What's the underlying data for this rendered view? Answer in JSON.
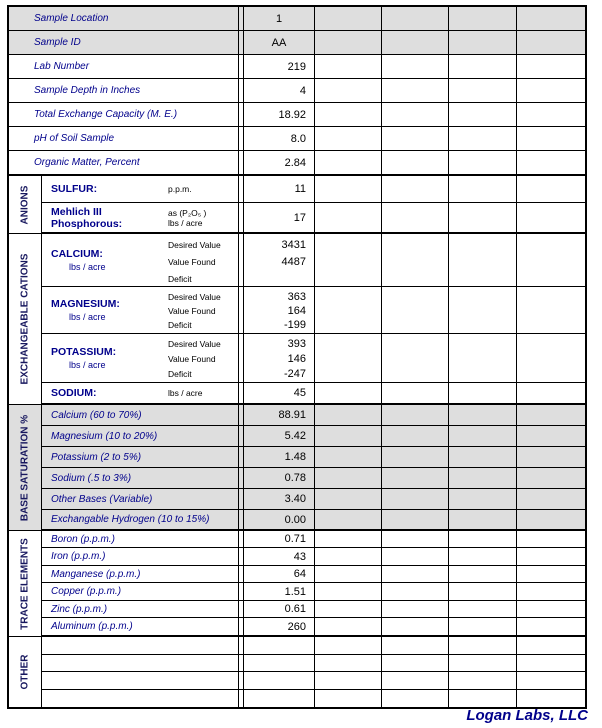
{
  "accent_color": "#00008b",
  "shade_color": "#dedede",
  "footer": {
    "brand": "Logan Labs, LLC"
  },
  "table": {
    "empty_data_columns": 4,
    "top_rows": [
      {
        "label": "Sample Location",
        "value": "1",
        "shaded": true,
        "center": true
      },
      {
        "label": "Sample ID",
        "value": "AA",
        "shaded": true,
        "center": true
      },
      {
        "label": "Lab Number",
        "value": "219"
      },
      {
        "label": "Sample Depth in Inches",
        "value": "4"
      },
      {
        "label": "Total Exchange Capacity (M. E.)",
        "value": "18.92"
      },
      {
        "label": "pH of Soil Sample",
        "value": "8.0"
      },
      {
        "label": "Organic Matter, Percent",
        "value": "2.84"
      }
    ],
    "anions": {
      "header": "ANIONS",
      "rows": [
        {
          "name": "SULFUR:",
          "unit_lines": [
            "p.p.m."
          ],
          "value": "11"
        },
        {
          "name": "Mehlich III Phosphorous:",
          "unit_lines": [
            "as (P₂O₅ )",
            "lbs / acre"
          ],
          "value": "17"
        }
      ]
    },
    "cations": {
      "header": "EXCHANGEABLE CATIONS",
      "rows": [
        {
          "name": "CALCIUM:",
          "unit_sub": "lbs / acre",
          "line_labels": [
            "Desired Value",
            "Value Found",
            "Deficit"
          ],
          "values": [
            "3431",
            "4487",
            ""
          ]
        },
        {
          "name": "MAGNESIUM:",
          "unit_sub": "lbs / acre",
          "line_labels": [
            "Desired Value",
            "Value Found",
            "Deficit"
          ],
          "values": [
            "363",
            "164",
            "-199"
          ]
        },
        {
          "name": "POTASSIUM:",
          "unit_sub": "lbs / acre",
          "line_labels": [
            "Desired Value",
            "Value Found",
            "Deficit"
          ],
          "values": [
            "393",
            "146",
            "-247"
          ]
        },
        {
          "name": "SODIUM:",
          "simple": true,
          "unit_lines": [
            "lbs / acre"
          ],
          "value": "45"
        }
      ]
    },
    "base_saturation": {
      "header": "BASE SATURATION %",
      "shaded": true,
      "rows": [
        {
          "label": "Calcium (60 to 70%)",
          "value": "88.91"
        },
        {
          "label": "Magnesium (10 to 20%)",
          "value": "5.42"
        },
        {
          "label": "Potassium (2 to 5%)",
          "value": "1.48"
        },
        {
          "label": "Sodium (.5 to 3%)",
          "value": "0.78"
        },
        {
          "label": "Other Bases (Variable)",
          "value": "3.40"
        },
        {
          "label": "Exchangable Hydrogen (10 to 15%)",
          "value": "0.00"
        }
      ]
    },
    "trace_elements": {
      "header": "TRACE ELEMENTS",
      "rows": [
        {
          "label": "Boron (p.p.m.)",
          "value": "0.71"
        },
        {
          "label": "Iron (p.p.m.)",
          "value": "43"
        },
        {
          "label": "Manganese (p.p.m.)",
          "value": "64"
        },
        {
          "label": "Copper (p.p.m.)",
          "value": "1.51"
        },
        {
          "label": "Zinc (p.p.m.)",
          "value": "0.61"
        },
        {
          "label": "Aluminum (p.p.m.)",
          "value": "260"
        }
      ]
    },
    "other": {
      "header": "OTHER",
      "rows": [
        {
          "label": "",
          "value": ""
        },
        {
          "label": "",
          "value": ""
        },
        {
          "label": "",
          "value": ""
        },
        {
          "label": "",
          "value": ""
        }
      ]
    }
  }
}
